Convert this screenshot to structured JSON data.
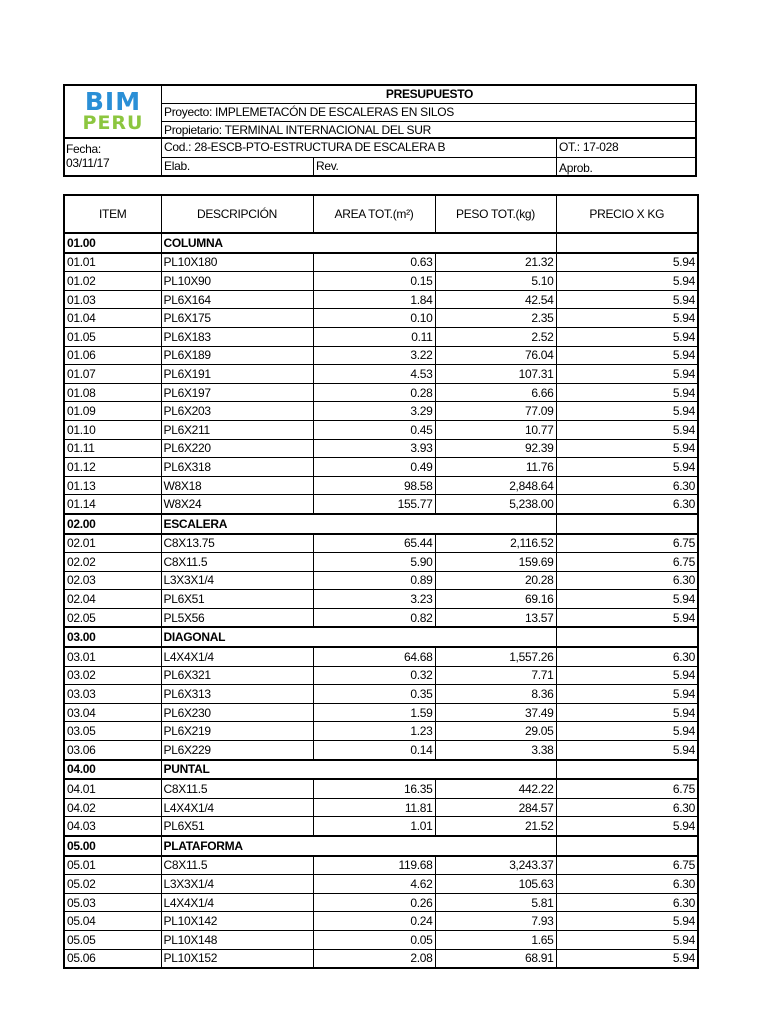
{
  "header": {
    "logo": {
      "line1": "BIM",
      "line2": "PERU",
      "colors": {
        "bim": "#2a8fd6",
        "peru": "#8cc63f"
      }
    },
    "title": "PRESUPUESTO",
    "proyecto": "Proyecto: IMPLEMETACÓN DE ESCALERAS EN SILOS",
    "propietario": "Propietario: TERMINAL INTERNACIONAL DEL SUR",
    "fecha_label": "Fecha:",
    "fecha": "03/11/17",
    "cod": "Cod.: 28-ESCB-PTO-ESTRUCTURA DE ESCALERA B",
    "ot": "OT.: 17-028",
    "elab": "Elab.",
    "rev": "Rev.",
    "aprob": "Aprob."
  },
  "table": {
    "columns": [
      "ITEM",
      "DESCRIPCIÓN",
      "AREA TOT.(m²)",
      "PESO TOT.(kg)",
      "PRECIO X KG"
    ],
    "sections": [
      {
        "item": "01.00",
        "name": "COLUMNA",
        "rows": [
          [
            "01.01",
            "PL10X180",
            "0.63",
            "21.32",
            "5.94"
          ],
          [
            "01.02",
            "PL10X90",
            "0.15",
            "5.10",
            "5.94"
          ],
          [
            "01.03",
            "PL6X164",
            "1.84",
            "42.54",
            "5.94"
          ],
          [
            "01.04",
            "PL6X175",
            "0.10",
            "2.35",
            "5.94"
          ],
          [
            "01.05",
            "PL6X183",
            "0.11",
            "2.52",
            "5.94"
          ],
          [
            "01.06",
            "PL6X189",
            "3.22",
            "76.04",
            "5.94"
          ],
          [
            "01.07",
            "PL6X191",
            "4.53",
            "107.31",
            "5.94"
          ],
          [
            "01.08",
            "PL6X197",
            "0.28",
            "6.66",
            "5.94"
          ],
          [
            "01.09",
            "PL6X203",
            "3.29",
            "77.09",
            "5.94"
          ],
          [
            "01.10",
            "PL6X211",
            "0.45",
            "10.77",
            "5.94"
          ],
          [
            "01.11",
            "PL6X220",
            "3.93",
            "92.39",
            "5.94"
          ],
          [
            "01.12",
            "PL6X318",
            "0.49",
            "11.76",
            "5.94"
          ],
          [
            "01.13",
            "W8X18",
            "98.58",
            "2,848.64",
            "6.30"
          ],
          [
            "01.14",
            "W8X24",
            "155.77",
            "5,238.00",
            "6.30"
          ]
        ]
      },
      {
        "item": "02.00",
        "name": "ESCALERA",
        "rows": [
          [
            "02.01",
            "C8X13.75",
            "65.44",
            "2,116.52",
            "6.75"
          ],
          [
            "02.02",
            "C8X11.5",
            "5.90",
            "159.69",
            "6.75"
          ],
          [
            "02.03",
            "L3X3X1/4",
            "0.89",
            "20.28",
            "6.30"
          ],
          [
            "02.04",
            "PL6X51",
            "3.23",
            "69.16",
            "5.94"
          ],
          [
            "02.05",
            "PL5X56",
            "0.82",
            "13.57",
            "5.94"
          ]
        ]
      },
      {
        "item": "03.00",
        "name": "DIAGONAL",
        "rows": [
          [
            "03.01",
            "L4X4X1/4",
            "64.68",
            "1,557.26",
            "6.30"
          ],
          [
            "03.02",
            "PL6X321",
            "0.32",
            "7.71",
            "5.94"
          ],
          [
            "03.03",
            "PL6X313",
            "0.35",
            "8.36",
            "5.94"
          ],
          [
            "03.04",
            "PL6X230",
            "1.59",
            "37.49",
            "5.94"
          ],
          [
            "03.05",
            "PL6X219",
            "1.23",
            "29.05",
            "5.94"
          ],
          [
            "03.06",
            "PL6X229",
            "0.14",
            "3.38",
            "5.94"
          ]
        ]
      },
      {
        "item": "04.00",
        "name": "PUNTAL",
        "rows": [
          [
            "04.01",
            "C8X11.5",
            "16.35",
            "442.22",
            "6.75"
          ],
          [
            "04.02",
            "L4X4X1/4",
            "11.81",
            "284.57",
            "6.30"
          ],
          [
            "04.03",
            "PL6X51",
            "1.01",
            "21.52",
            "5.94"
          ]
        ]
      },
      {
        "item": "05.00",
        "name": "PLATAFORMA",
        "rows": [
          [
            "05.01",
            "C8X11.5",
            "119.68",
            "3,243.37",
            "6.75"
          ],
          [
            "05.02",
            "L3X3X1/4",
            "4.62",
            "105.63",
            "6.30"
          ],
          [
            "05.03",
            "L4X4X1/4",
            "0.26",
            "5.81",
            "6.30"
          ],
          [
            "05.04",
            "PL10X142",
            "0.24",
            "7.93",
            "5.94"
          ],
          [
            "05.05",
            "PL10X148",
            "0.05",
            "1.65",
            "5.94"
          ],
          [
            "05.06",
            "PL10X152",
            "2.08",
            "68.91",
            "5.94"
          ]
        ]
      }
    ]
  }
}
